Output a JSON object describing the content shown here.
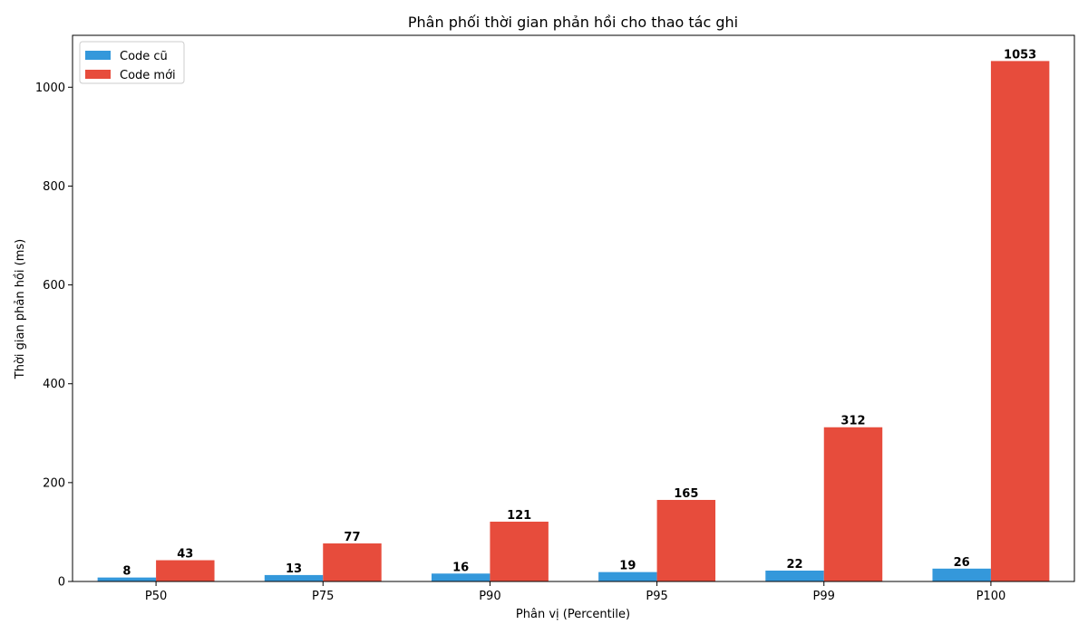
{
  "chart_data": {
    "type": "bar",
    "title": "Phân phối thời gian phản hồi cho thao tác ghi",
    "xlabel": "Phân vị (Percentile)",
    "ylabel": "Thời gian phản hồi (ms)",
    "categories": [
      "P50",
      "P75",
      "P90",
      "P95",
      "P99",
      "P100"
    ],
    "series": [
      {
        "name": "Code cũ",
        "color": "#3498db",
        "values": [
          8,
          13,
          16,
          19,
          22,
          26
        ]
      },
      {
        "name": "Code mới",
        "color": "#e74c3c",
        "values": [
          43,
          77,
          121,
          165,
          312,
          1053
        ]
      }
    ],
    "ylim": [
      0,
      1105
    ],
    "yticks": [
      0,
      200,
      400,
      600,
      800,
      1000
    ],
    "legend": "top-left",
    "grid": false
  }
}
